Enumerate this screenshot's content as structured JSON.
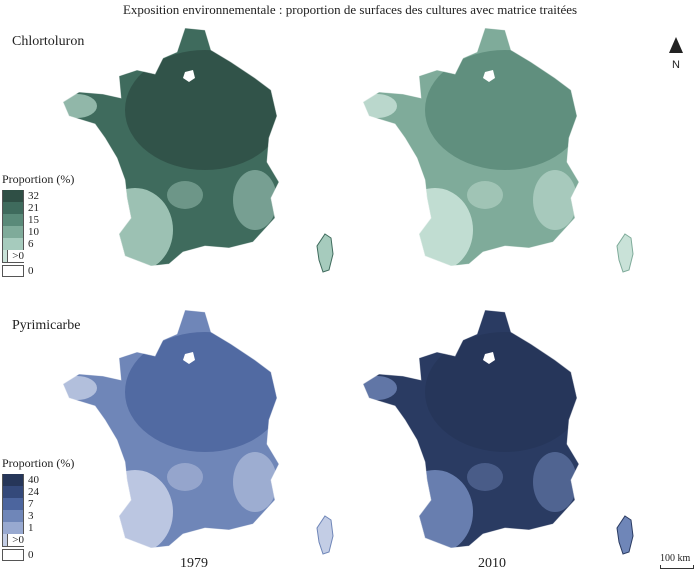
{
  "title": "Exposition environnementale : proportion de surfaces des cultures avec matrice traitées",
  "north_arrow": {
    "label": "N"
  },
  "scale_bar": {
    "label": "100 km"
  },
  "years": [
    "1979",
    "2010"
  ],
  "panels": [
    {
      "name": "Chlortoluron",
      "legend": {
        "title": "Proportion (%)",
        "classes": [
          {
            "label": "32",
            "color": "#2f4f45"
          },
          {
            "label": "21",
            "color": "#3f6b5d"
          },
          {
            "label": "15",
            "color": "#5a8a79"
          },
          {
            "label": "10",
            "color": "#7fab9a"
          },
          {
            "label": "6",
            "color": "#a6cbbd"
          },
          {
            "label": ">0",
            "color": "#c9e2d8"
          },
          {
            "label": "0",
            "color": "#ffffff"
          }
        ]
      },
      "maps": [
        {
          "year": "1979",
          "main_color": "#3f6b5d",
          "accent_color": "#2f4f45",
          "light_color": "#a6cbbd"
        },
        {
          "year": "2010",
          "main_color": "#7fab9a",
          "accent_color": "#5a8a79",
          "light_color": "#c9e2d8"
        }
      ]
    },
    {
      "name": "Pyrimicarbe",
      "legend": {
        "title": "Proportion (%)",
        "classes": [
          {
            "label": "40",
            "color": "#263659"
          },
          {
            "label": "24",
            "color": "#34497a"
          },
          {
            "label": "7",
            "color": "#4c659e"
          },
          {
            "label": "3",
            "color": "#6f86b8"
          },
          {
            "label": "1",
            "color": "#98a9d0"
          },
          {
            "label": ">0",
            "color": "#c3cde5"
          },
          {
            "label": "0",
            "color": "#ffffff"
          }
        ]
      },
      "maps": [
        {
          "year": "1979",
          "main_color": "#6f86b8",
          "accent_color": "#4c659e",
          "light_color": "#c3cde5"
        },
        {
          "year": "2010",
          "main_color": "#2a3b62",
          "accent_color": "#263659",
          "light_color": "#6f86b8"
        }
      ]
    }
  ]
}
